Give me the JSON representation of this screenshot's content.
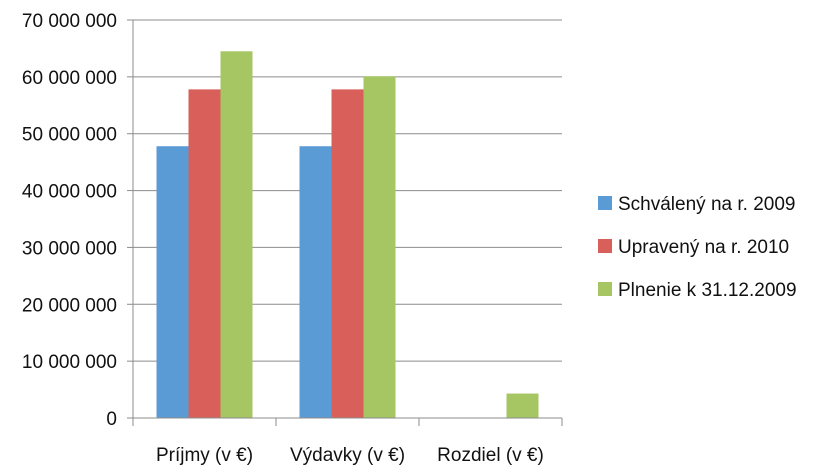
{
  "chart_data": {
    "type": "bar",
    "title": "",
    "xlabel": "",
    "ylabel": "",
    "categories": [
      "Príjmy (v €)",
      "Výdavky (v €)",
      "Rozdiel (v €)"
    ],
    "series": [
      {
        "name": "Schválený na r. 2009",
        "color": "#5b9bd5",
        "values": [
          47800000,
          47800000,
          0
        ]
      },
      {
        "name": "Upravený na r. 2010",
        "color": "#d9605a",
        "values": [
          57800000,
          57800000,
          0
        ]
      },
      {
        "name": "Plnenie k 31.12.2009",
        "color": "#a5c663",
        "values": [
          64500000,
          60100000,
          4300000
        ]
      }
    ],
    "yticks": [
      "0",
      "10 000 000",
      "20 000 000",
      "30 000 000",
      "40 000 000",
      "50 000 000",
      "60 000 000",
      "70 000 000"
    ],
    "ylim": [
      0,
      70000000
    ],
    "grid": true,
    "legend_position": "right"
  }
}
